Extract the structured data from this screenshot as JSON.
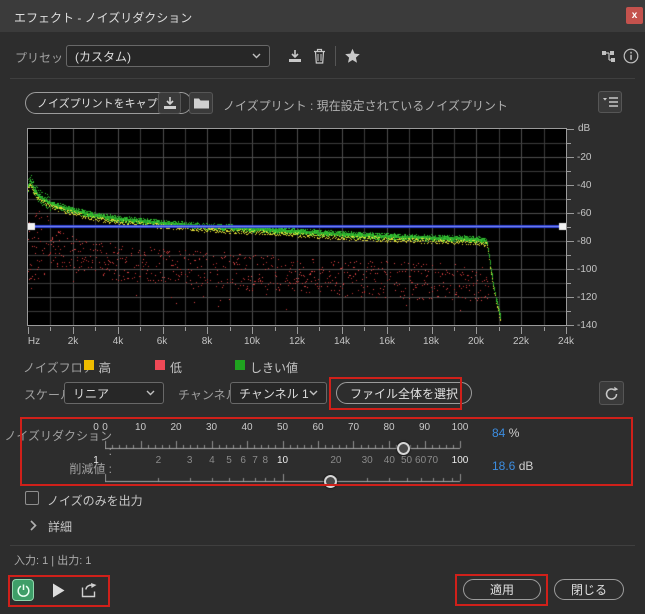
{
  "window": {
    "title": "エフェクト - ノイズリダクション",
    "close_glyph": "x"
  },
  "preset_row": {
    "label": "プリセット :",
    "value": "(カスタム)",
    "icons": [
      "save-preset",
      "delete-preset",
      "favorite-star",
      "routing",
      "info"
    ]
  },
  "noiseprint_row": {
    "capture_button": "ノイズプリントをキャプチャ",
    "status": "ノイズプリント : 現在設定されているノイズプリント"
  },
  "graph": {
    "x_axis": {
      "labels": [
        "Hz",
        "2k",
        "4k",
        "6k",
        "8k",
        "10k",
        "12k",
        "14k",
        "16k",
        "18k",
        "20k",
        "22k",
        "24k"
      ]
    },
    "y_axis": {
      "unit": "dB",
      "labels": [
        "-20",
        "-40",
        "-60",
        "-80",
        "-100",
        "-120",
        "-140"
      ],
      "min": -140,
      "max": 0
    },
    "threshold_db": -69.5,
    "envelope_db": [
      [
        0.03,
        -40
      ],
      [
        0.1,
        -36
      ],
      [
        0.25,
        -43
      ],
      [
        0.5,
        -48
      ],
      [
        1,
        -53
      ],
      [
        2,
        -58
      ],
      [
        3,
        -61.5
      ],
      [
        4,
        -64
      ],
      [
        5,
        -65.5
      ],
      [
        6,
        -67
      ],
      [
        8,
        -69.5
      ],
      [
        10,
        -71
      ],
      [
        12,
        -73
      ],
      [
        14,
        -75
      ],
      [
        16,
        -76.5
      ],
      [
        18,
        -77.5
      ],
      [
        20,
        -78.5
      ],
      [
        20.5,
        -80
      ],
      [
        20.8,
        -112
      ],
      [
        21.1,
        -134
      ]
    ],
    "colors": {
      "high": "#35c935",
      "peak": "#e6df38",
      "low": "#e04848",
      "threshold_line": "#2b3fd6"
    }
  },
  "legend": {
    "label": "ノイズフロア :",
    "items": [
      {
        "label": "高",
        "color": "#eebc00"
      },
      {
        "label": "低",
        "color": "#ef4956"
      },
      {
        "label": "しきい値",
        "color": "#1fa31f"
      }
    ]
  },
  "controls": {
    "scale_label": "スケール :",
    "scale_value": "リニア",
    "channel_label": "チャンネル :",
    "channel_value": "チャンネル 1",
    "select_file_button": "ファイル全体を選択"
  },
  "sliders": {
    "noise_reduction": {
      "label": "ノイズリダクション :",
      "min_label": "0",
      "scale": "linear",
      "min": 0,
      "max": 100,
      "tick_labels": [
        0,
        10,
        20,
        30,
        40,
        50,
        60,
        70,
        80,
        90,
        100
      ],
      "value": 84,
      "display": "84",
      "unit": "%"
    },
    "reduce_by": {
      "label": "削減値 :",
      "min_label": "1",
      "scale": "log",
      "min": 1,
      "max": 100,
      "tick_labels": [
        2,
        3,
        4,
        5,
        6,
        7,
        8,
        10,
        20,
        30,
        40,
        50,
        60,
        70,
        100
      ],
      "emphasized": [
        1,
        10,
        100
      ],
      "value": 18.6,
      "display": "18.6",
      "unit": "dB"
    }
  },
  "output_noise_only": {
    "label": "ノイズのみを出力",
    "checked": false
  },
  "advanced": {
    "label": "詳細"
  },
  "footer": {
    "io_text": "入力: 1 | 出力: 1"
  },
  "action_buttons": {
    "apply": "適用",
    "close": "閉じる"
  }
}
